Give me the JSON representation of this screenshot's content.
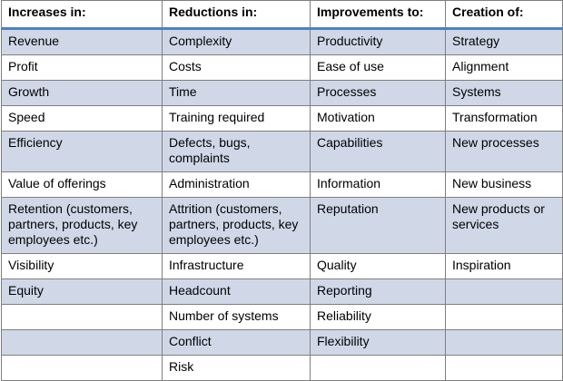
{
  "table": {
    "headers": [
      "Increases in:",
      "Reductions in:",
      "Improvements to:",
      "Creation of:"
    ],
    "rows": [
      [
        "Revenue",
        "Complexity",
        "Productivity",
        "Strategy"
      ],
      [
        "Profit",
        "Costs",
        "Ease of use",
        "Alignment"
      ],
      [
        "Growth",
        "Time",
        "Processes",
        "Systems"
      ],
      [
        "Speed",
        "Training required",
        "Motivation",
        "Transformation"
      ],
      [
        "Efficiency",
        "Defects, bugs, complaints",
        "Capabilities",
        "New processes"
      ],
      [
        "Value of offerings",
        "Administration",
        "Information",
        "New business"
      ],
      [
        "Retention (customers, partners, products, key employees etc.)",
        "Attrition (customers, partners, products, key employees etc.)",
        "Reputation",
        "New products or services"
      ],
      [
        "Visibility",
        "Infrastructure",
        "Quality",
        "Inspiration"
      ],
      [
        "Equity",
        "Headcount",
        "Reporting",
        ""
      ],
      [
        "",
        "Number of systems",
        "Reliability",
        ""
      ],
      [
        "",
        "Conflict",
        "Flexibility",
        ""
      ],
      [
        "",
        "Risk",
        "",
        ""
      ]
    ]
  },
  "colors": {
    "header_rule": "#4f81bd",
    "band_row": "#d0d8e8",
    "alt_row": "#ffffff",
    "border": "#7f7f7f"
  }
}
